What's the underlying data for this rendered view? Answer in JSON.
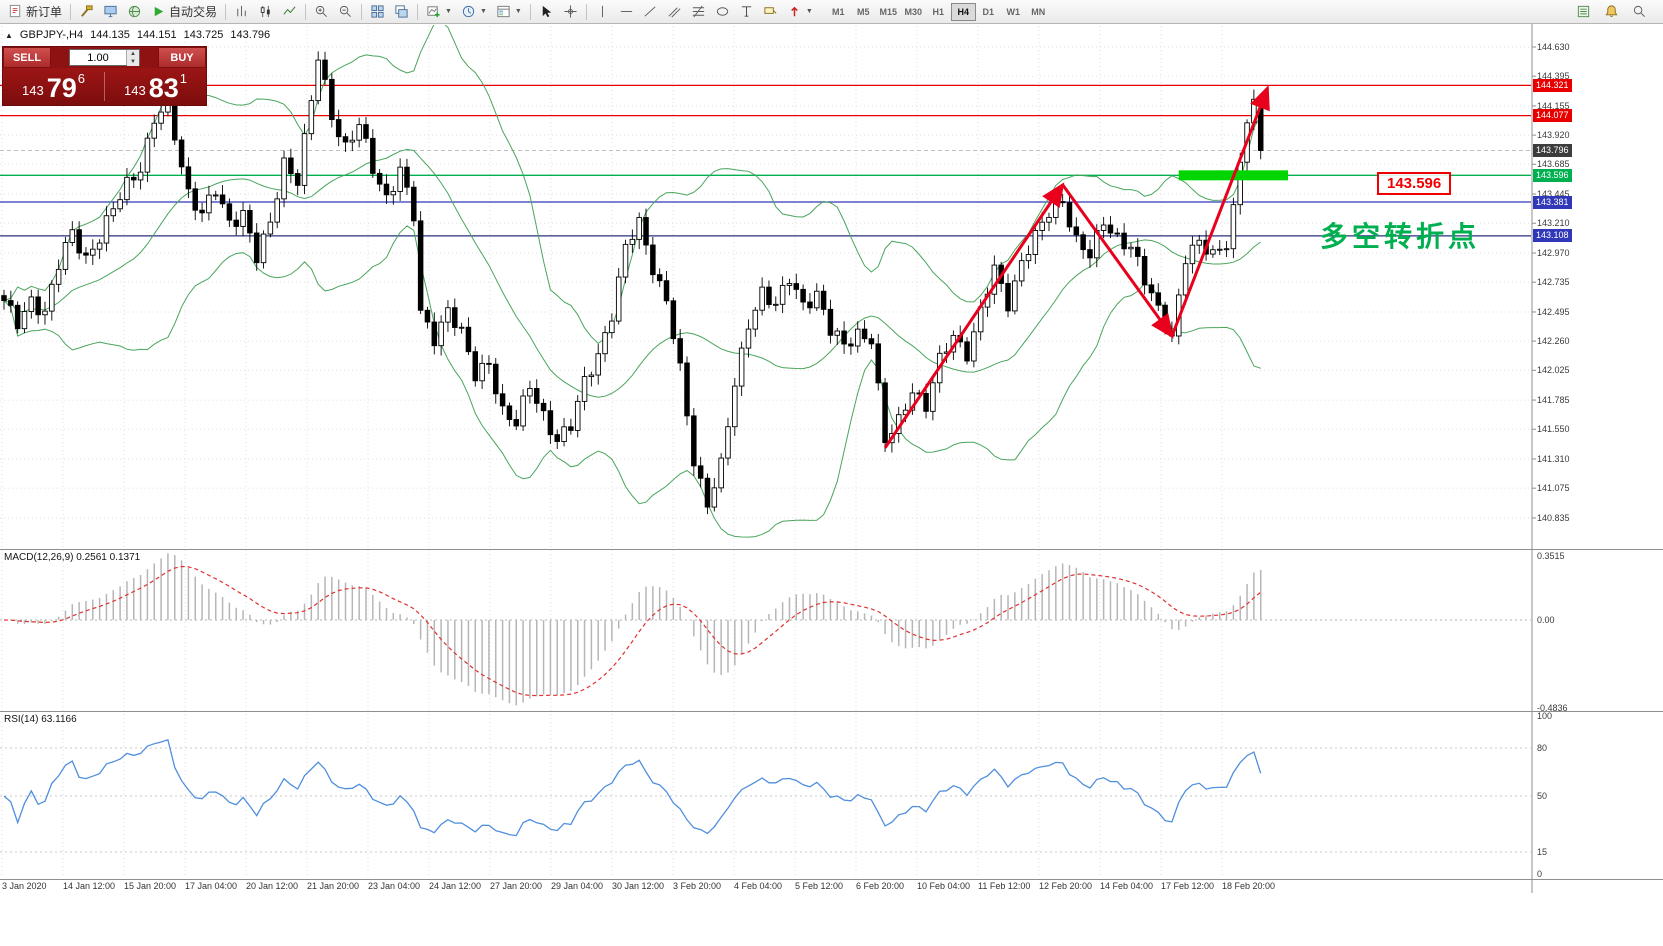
{
  "toolbar": {
    "new_order_label": "新订单",
    "autotrading_label": "自动交易",
    "timeframes": [
      "M1",
      "M5",
      "M15",
      "M30",
      "H1",
      "H4",
      "D1",
      "W1",
      "MN"
    ],
    "active_timeframe": "H4",
    "icons": [
      "new-order-icon",
      "toolbox-icon",
      "terminal-icon",
      "market-icon",
      "autotrading-play-icon",
      "chart-bars-icon",
      "chart-candles-icon",
      "chart-line-icon",
      "zoom-in-icon",
      "zoom-out-icon",
      "tile-windows-icon",
      "cascade-windows-icon",
      "new-chart-icon",
      "periods-icon",
      "templates-icon",
      "cursor-icon",
      "crosshair-icon",
      "vline-icon",
      "hline-icon",
      "trendline-icon",
      "channel-icon",
      "fibo-icon",
      "shapes-icon",
      "text-icon",
      "label-icon",
      "arrows-icon",
      "depth-icon",
      "alerts-icon",
      "search-icon"
    ]
  },
  "symbol_bar": {
    "symbol_period": "GBPJPY-,H4",
    "open": "144.135",
    "high": "144.151",
    "low": "143.725",
    "close": "143.796"
  },
  "trade_panel": {
    "sell_label": "SELL",
    "buy_label": "BUY",
    "lot": "1.00",
    "sell_price": {
      "big_figure": "143",
      "pips": "79",
      "pip_fraction": "6"
    },
    "buy_price": {
      "big_figure": "143",
      "pips": "83",
      "pip_fraction": "1"
    }
  },
  "price_axis": {
    "ticks": [
      "144.630",
      "144.395",
      "144.155",
      "143.920",
      "143.685",
      "143.445",
      "143.210",
      "142.970",
      "142.735",
      "142.495",
      "142.260",
      "142.025",
      "141.785",
      "141.550",
      "141.310",
      "141.075",
      "140.835"
    ]
  },
  "price_tags": [
    {
      "price": 144.321,
      "label": "144.321",
      "color": "#e80000"
    },
    {
      "price": 144.077,
      "label": "144.077",
      "color": "#e80000"
    },
    {
      "price": 143.796,
      "label": "143.796",
      "color": "#3c3c3c"
    },
    {
      "price": 143.596,
      "label": "143.596",
      "color": "#00b050"
    },
    {
      "price": 143.381,
      "label": "143.381",
      "color": "#3038b8"
    },
    {
      "price": 143.108,
      "label": "143.108",
      "color": "#3038b8"
    }
  ],
  "levels": [
    {
      "price": 144.321,
      "color": "#e80000",
      "width": 1.2,
      "dash": ""
    },
    {
      "price": 144.077,
      "color": "#e80000",
      "width": 1.2,
      "dash": ""
    },
    {
      "price": 143.796,
      "color": "#c0c0c0",
      "width": 1,
      "dash": "4,3"
    },
    {
      "price": 143.596,
      "color": "#00b050",
      "width": 1.3,
      "dash": ""
    },
    {
      "price": 143.381,
      "color": "#3038b8",
      "width": 1.2,
      "dash": ""
    },
    {
      "price": 143.108,
      "color": "#28307e",
      "width": 1.2,
      "dash": ""
    }
  ],
  "annotations": {
    "level_label": "143.596",
    "pivot_text": "多空转折点",
    "pivot_text_color": "#00b050",
    "highlight": {
      "from_index": 172,
      "to_index": 188,
      "price": 143.596,
      "color": "#00d500"
    },
    "arrow_color": "#e8001c",
    "arrows": [
      {
        "from": [
          129,
          141.4
        ],
        "to": [
          155,
          143.52
        ]
      },
      {
        "from": [
          155,
          143.52
        ],
        "to": [
          171,
          142.3
        ]
      },
      {
        "from": [
          171,
          142.3
        ],
        "to": [
          185,
          144.3
        ]
      }
    ]
  },
  "macd": {
    "label": "MACD(12,26,9) 0.2561 0.1371",
    "axis": [
      {
        "label": "0.3515",
        "value": 0.3515
      },
      {
        "label": "0.00",
        "value": 0
      },
      {
        "label": "-0.4836",
        "value": -0.4836
      }
    ]
  },
  "rsi": {
    "label": "RSI(14) 63.1166",
    "axis": [
      {
        "label": "100",
        "value": 100
      },
      {
        "label": "80",
        "value": 80
      },
      {
        "label": "50",
        "value": 50
      },
      {
        "label": "15",
        "value": 15
      },
      {
        "label": "0",
        "value": 0
      }
    ],
    "level_lines": [
      80,
      50,
      15
    ]
  },
  "time_axis": [
    "3 Jan 2020",
    "14 Jan 12:00",
    "15 Jan 20:00",
    "17 Jan 04:00",
    "20 Jan 12:00",
    "21 Jan 20:00",
    "23 Jan 04:00",
    "24 Jan 12:00",
    "27 Jan 20:00",
    "29 Jan 04:00",
    "30 Jan 12:00",
    "3 Feb 20:00",
    "4 Feb 04:00",
    "5 Feb 12:00",
    "6 Feb 20:00",
    "10 Feb 04:00",
    "11 Feb 12:00",
    "12 Feb 20:00",
    "14 Feb 04:00",
    "17 Feb 12:00",
    "18 Feb 20:00"
  ],
  "chart_data": {
    "type": "candlestick",
    "symbol": "GBPJPY",
    "timeframe": "H4",
    "indicators": [
      "Bollinger Bands(20,2)",
      "MACD(12,26,9)",
      "RSI(14)"
    ],
    "price_range": [
      140.835,
      144.63
    ],
    "candle_count": 185,
    "last_candle": {
      "o": 144.135,
      "h": 144.151,
      "l": 143.725,
      "c": 143.796
    },
    "close_waypoints": [
      [
        0,
        142.55
      ],
      [
        2,
        142.4
      ],
      [
        4,
        142.62
      ],
      [
        6,
        142.48
      ],
      [
        8,
        142.85
      ],
      [
        10,
        143.15
      ],
      [
        12,
        142.95
      ],
      [
        14,
        143.08
      ],
      [
        16,
        143.3
      ],
      [
        18,
        143.55
      ],
      [
        20,
        143.68
      ],
      [
        22,
        144.02
      ],
      [
        24,
        144.15
      ],
      [
        25,
        143.92
      ],
      [
        27,
        143.48
      ],
      [
        29,
        143.28
      ],
      [
        31,
        143.45
      ],
      [
        33,
        143.22
      ],
      [
        35,
        143.32
      ],
      [
        37,
        142.92
      ],
      [
        39,
        143.18
      ],
      [
        41,
        143.72
      ],
      [
        43,
        143.58
      ],
      [
        45,
        144.18
      ],
      [
        46,
        144.52
      ],
      [
        48,
        144.08
      ],
      [
        50,
        143.85
      ],
      [
        52,
        144.0
      ],
      [
        54,
        143.62
      ],
      [
        56,
        143.42
      ],
      [
        58,
        143.68
      ],
      [
        60,
        143.25
      ],
      [
        61,
        142.45
      ],
      [
        63,
        142.28
      ],
      [
        65,
        142.55
      ],
      [
        67,
        142.32
      ],
      [
        69,
        141.95
      ],
      [
        71,
        142.1
      ],
      [
        73,
        141.72
      ],
      [
        75,
        141.58
      ],
      [
        77,
        141.88
      ],
      [
        79,
        141.68
      ],
      [
        81,
        141.48
      ],
      [
        83,
        141.55
      ],
      [
        85,
        141.92
      ],
      [
        87,
        142.18
      ],
      [
        89,
        142.48
      ],
      [
        91,
        142.98
      ],
      [
        93,
        143.22
      ],
      [
        95,
        142.88
      ],
      [
        97,
        142.58
      ],
      [
        99,
        142.0
      ],
      [
        101,
        141.3
      ],
      [
        103,
        140.98
      ],
      [
        105,
        141.25
      ],
      [
        107,
        141.88
      ],
      [
        109,
        142.42
      ],
      [
        111,
        142.68
      ],
      [
        113,
        142.52
      ],
      [
        115,
        142.75
      ],
      [
        117,
        142.58
      ],
      [
        119,
        142.65
      ],
      [
        121,
        142.32
      ],
      [
        123,
        142.22
      ],
      [
        125,
        142.35
      ],
      [
        127,
        142.28
      ],
      [
        128,
        141.85
      ],
      [
        129,
        141.42
      ],
      [
        131,
        141.62
      ],
      [
        133,
        141.9
      ],
      [
        135,
        141.72
      ],
      [
        137,
        142.08
      ],
      [
        139,
        142.32
      ],
      [
        141,
        142.18
      ],
      [
        143,
        142.48
      ],
      [
        145,
        142.82
      ],
      [
        147,
        142.58
      ],
      [
        149,
        142.92
      ],
      [
        151,
        143.08
      ],
      [
        153,
        143.28
      ],
      [
        155,
        143.42
      ],
      [
        157,
        143.08
      ],
      [
        159,
        142.92
      ],
      [
        161,
        143.22
      ],
      [
        163,
        143.12
      ],
      [
        165,
        143.02
      ],
      [
        167,
        142.72
      ],
      [
        169,
        142.52
      ],
      [
        171,
        142.32
      ],
      [
        173,
        142.92
      ],
      [
        175,
        143.02
      ],
      [
        177,
        142.98
      ],
      [
        179,
        143.08
      ],
      [
        180,
        143.32
      ],
      [
        181,
        143.68
      ],
      [
        182,
        144.02
      ],
      [
        183,
        144.135
      ],
      [
        184,
        143.796
      ]
    ]
  }
}
